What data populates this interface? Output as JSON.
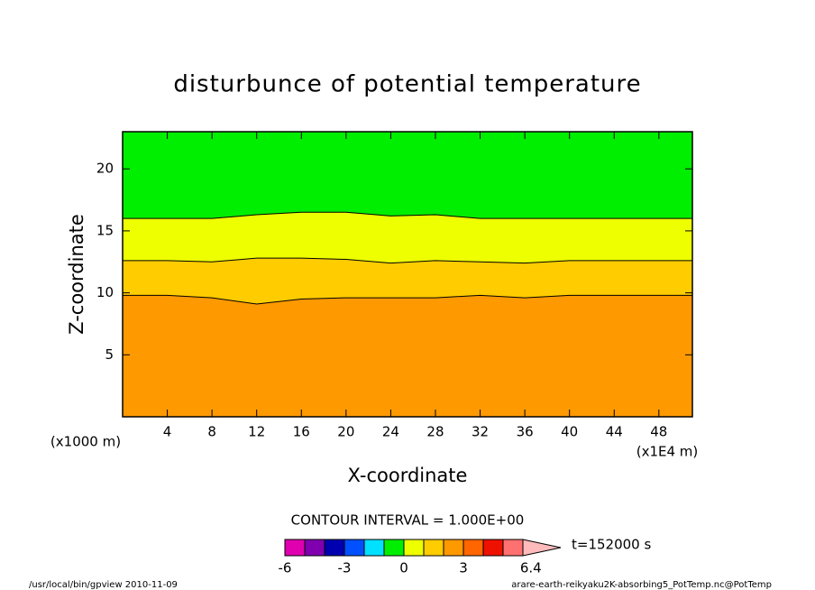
{
  "chart_data": {
    "type": "contour",
    "title": "disturbunce of potential temperature",
    "xlabel": "X-coordinate",
    "ylabel": "Z-coordinate",
    "x_unit": "(x1E4 m)",
    "y_unit": "(x1000 m)",
    "xlim": [
      0,
      51
    ],
    "ylim": [
      0,
      23
    ],
    "xticks": [
      4,
      8,
      12,
      16,
      20,
      24,
      28,
      32,
      36,
      40,
      44,
      48
    ],
    "yticks": [
      5,
      10,
      15,
      20
    ],
    "contours": [
      {
        "level": 0,
        "x": [
          0,
          4,
          8,
          12,
          16,
          20,
          24,
          28,
          32,
          36,
          40,
          44,
          48,
          51
        ],
        "z": [
          16.0,
          16.0,
          16.0,
          16.3,
          16.5,
          16.5,
          16.2,
          16.3,
          16.0,
          16.0,
          16.0,
          16.0,
          16.0,
          16.0
        ]
      },
      {
        "level": 1,
        "x": [
          0,
          4,
          8,
          12,
          16,
          20,
          24,
          28,
          32,
          36,
          40,
          44,
          48,
          51
        ],
        "z": [
          12.6,
          12.6,
          12.5,
          12.8,
          12.8,
          12.7,
          12.4,
          12.6,
          12.5,
          12.4,
          12.6,
          12.6,
          12.6,
          12.6
        ]
      },
      {
        "level": 2,
        "x": [
          0,
          4,
          8,
          12,
          16,
          20,
          24,
          28,
          32,
          36,
          40,
          44,
          48,
          51
        ],
        "z": [
          9.8,
          9.8,
          9.6,
          9.1,
          9.5,
          9.6,
          9.6,
          9.6,
          9.8,
          9.6,
          9.8,
          9.8,
          9.8,
          9.8
        ]
      }
    ],
    "contour_interval": "CONTOUR INTERVAL = 1.000E+00",
    "colorbar": {
      "levels": [
        -6,
        -5,
        -4,
        -3,
        -2,
        -1,
        0,
        1,
        2,
        3,
        4,
        5,
        6
      ],
      "colors": [
        "#e000b0",
        "#8000b0",
        "#0000b0",
        "#0050ff",
        "#00e0ff",
        "#00ee00",
        "#eeff00",
        "#ffcc00",
        "#ff9900",
        "#ff6600",
        "#ee1100",
        "#ff7070",
        "#ffbbbb"
      ],
      "ticks": [
        -6,
        -3,
        0,
        3,
        6.4
      ]
    },
    "time": "t=152000 s",
    "footer_left": "/usr/local/bin/gpview  2010-11-09",
    "footer_right": "arare-earth-reikyaku2K-absorbing5_PotTemp.nc@PotTemp"
  }
}
